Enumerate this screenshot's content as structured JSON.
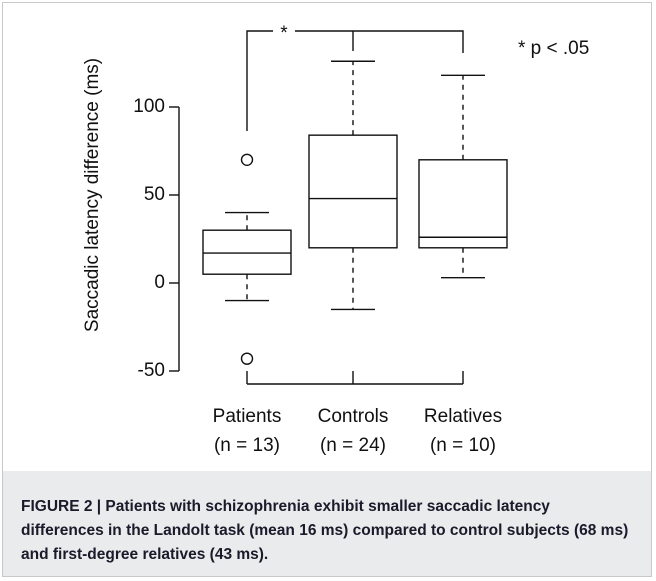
{
  "chart_data": {
    "type": "box",
    "ylabel": "Saccadic latency difference (ms)",
    "categories": [
      "Patients",
      "Controls",
      "Relatives"
    ],
    "sublabels": [
      "(n = 13)",
      "(n = 24)",
      "(n = 10)"
    ],
    "stats": [
      {
        "whislo": -10,
        "q1": 5,
        "med": 17,
        "q3": 30,
        "whishi": 40,
        "fliers": [
          70,
          -43
        ]
      },
      {
        "whislo": -15,
        "q1": 20,
        "med": 48,
        "q3": 84,
        "whishi": 126,
        "fliers": []
      },
      {
        "whislo": 3,
        "q1": 20,
        "med": 26,
        "q3": 70,
        "whishi": 118,
        "fliers": []
      }
    ],
    "ylim": [
      -50,
      100
    ],
    "yticks": [
      -50,
      0,
      50,
      100
    ],
    "significance_mark": "*",
    "legend_note": "* p < .05"
  },
  "caption": "FIGURE 2 | Patients with schizophrenia exhibit smaller saccadic latency differences in the Landolt task (mean 16 ms) compared to control subjects (68 ms) and first-degree relatives (43 ms)."
}
